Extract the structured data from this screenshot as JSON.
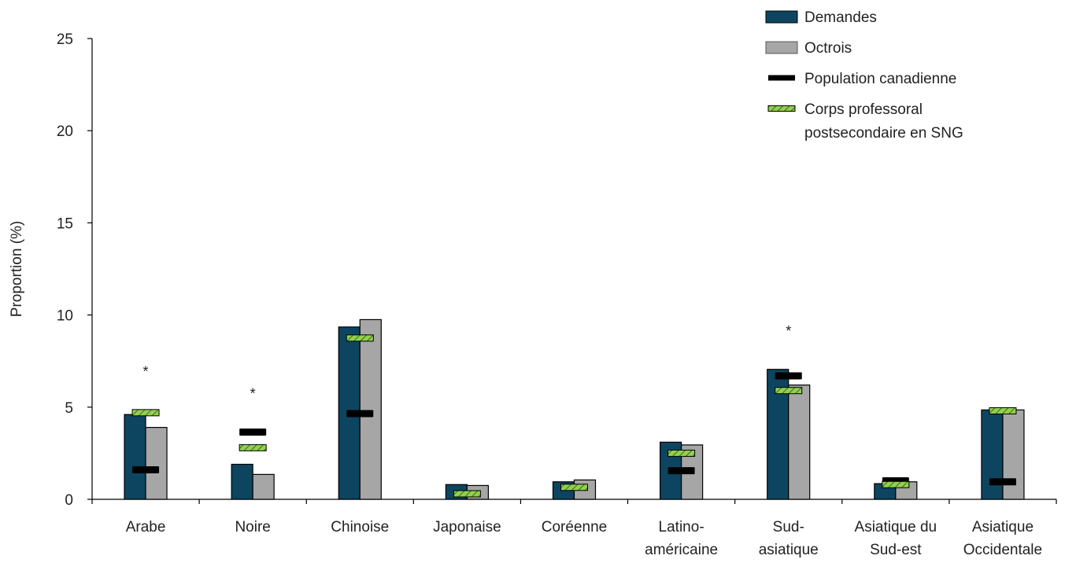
{
  "chart_data": {
    "type": "bar",
    "title": "",
    "xlabel": "",
    "ylabel": "Proportion (%)",
    "ylim": [
      0,
      25
    ],
    "yticks": [
      "0",
      "5",
      "10",
      "15",
      "20",
      "25"
    ],
    "grid": false,
    "legend_position": "top-right",
    "categories": [
      [
        "Arabe"
      ],
      [
        "Noire"
      ],
      [
        "Chinoise"
      ],
      [
        "Japonaise"
      ],
      [
        "Coréenne"
      ],
      [
        "Latino-",
        "américaine"
      ],
      [
        "Sud-",
        "asiatique"
      ],
      [
        "Asiatique du",
        "Sud-est"
      ],
      [
        "Asiatique",
        "Occidentale"
      ]
    ],
    "series": [
      {
        "name": "Demandes",
        "kind": "bar",
        "color": "#0d4560",
        "values": [
          4.6,
          1.9,
          9.35,
          0.8,
          0.95,
          3.1,
          7.05,
          0.85,
          4.85
        ]
      },
      {
        "name": "Octrois",
        "kind": "bar",
        "color": "#a6a6a6",
        "values": [
          3.9,
          1.35,
          9.75,
          0.75,
          1.05,
          2.95,
          6.2,
          0.95,
          4.85
        ]
      },
      {
        "name": "Population canadienne",
        "kind": "marker",
        "color": "#000000",
        "values": [
          1.6,
          3.65,
          4.65,
          null,
          null,
          1.55,
          6.7,
          1.0,
          0.95
        ]
      },
      {
        "name": "Corps professoral postsecondaire en SNG",
        "kind": "marker",
        "color": "#92d050",
        "values": [
          4.7,
          2.8,
          8.75,
          0.3,
          0.65,
          2.5,
          5.9,
          0.8,
          4.8
        ]
      }
    ],
    "annotations": [
      {
        "category_index": 0,
        "text": "*",
        "y": 7.1
      },
      {
        "category_index": 1,
        "text": "*",
        "y": 5.9
      },
      {
        "category_index": 6,
        "text": "*",
        "y": 9.3
      }
    ],
    "legend": [
      {
        "label": [
          "Demandes"
        ]
      },
      {
        "label": [
          "Octrois"
        ]
      },
      {
        "label": [
          "Population canadienne"
        ]
      },
      {
        "label": [
          "Corps professoral",
          "postsecondaire en SNG"
        ]
      }
    ]
  }
}
